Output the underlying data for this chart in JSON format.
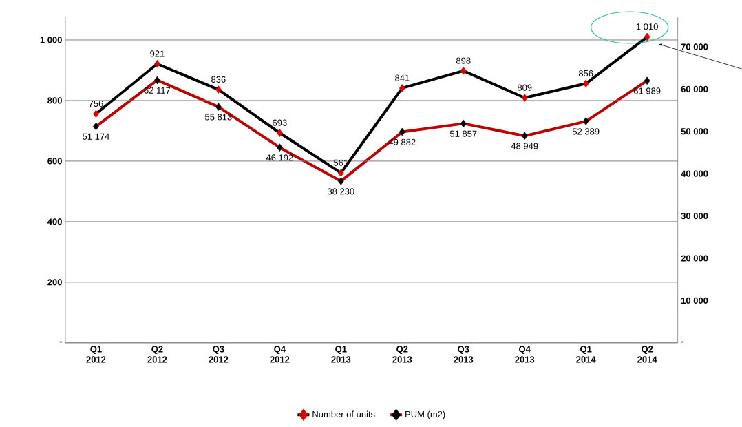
{
  "chart_data": {
    "type": "line",
    "categories": [
      "Q1 2012",
      "Q2 2012",
      "Q3 2012",
      "Q4 2012",
      "Q1 2013",
      "Q2 2013",
      "Q3 2013",
      "Q4 2013",
      "Q1 2014",
      "Q2 2014"
    ],
    "series": [
      {
        "name": "Number of units",
        "color": "#000000",
        "colors": [
          "#e00000",
          "#e00000",
          "#e00000",
          "#e00000",
          "#e00000",
          "#e00000",
          "#e00000",
          "#e00000",
          "#e00000",
          "#e00000"
        ],
        "values": [
          756,
          921,
          836,
          693,
          561,
          841,
          898,
          809,
          856,
          1010
        ],
        "value_labels": [
          "756",
          "921",
          "836",
          "693",
          "561",
          "841",
          "898",
          "809",
          "856",
          "1 010"
        ]
      },
      {
        "name": "PUM (m2)",
        "color": "#c00000",
        "colors": [
          "#000000",
          "#000000",
          "#000000",
          "#000000",
          "#000000",
          "#000000",
          "#000000",
          "#000000",
          "#000000",
          "#000000"
        ],
        "axis": "y2",
        "values": [
          51174,
          62117,
          55813,
          46192,
          38230,
          49882,
          51857,
          48949,
          52389,
          61989
        ],
        "value_labels": [
          "51 174",
          "62 117",
          "55 813",
          "46 192",
          "38 230",
          "49 882",
          "51 857",
          "48 949",
          "52 389",
          "61 989"
        ]
      }
    ],
    "ylim": [
      0,
      1075
    ],
    "yticks": [
      {
        "value": 0,
        "label": "-"
      },
      200,
      400,
      600,
      800,
      {
        "value": 1000,
        "label": "1 000"
      }
    ],
    "y2lim": [
      0,
      77000
    ],
    "y2ticks": [
      {
        "value": 0,
        "label": "-"
      },
      {
        "value": 10000,
        "label": "10 000"
      },
      {
        "value": 20000,
        "label": "20 000"
      },
      {
        "value": 30000,
        "label": "30 000"
      },
      {
        "value": 40000,
        "label": "40 000"
      },
      {
        "value": 50000,
        "label": "50 000"
      },
      {
        "value": 60000,
        "label": "60 000"
      },
      {
        "value": 70000,
        "label": "70 000"
      }
    ],
    "grid": "y",
    "legend": "bottom",
    "marker": "diamond",
    "line_style": "solid"
  }
}
